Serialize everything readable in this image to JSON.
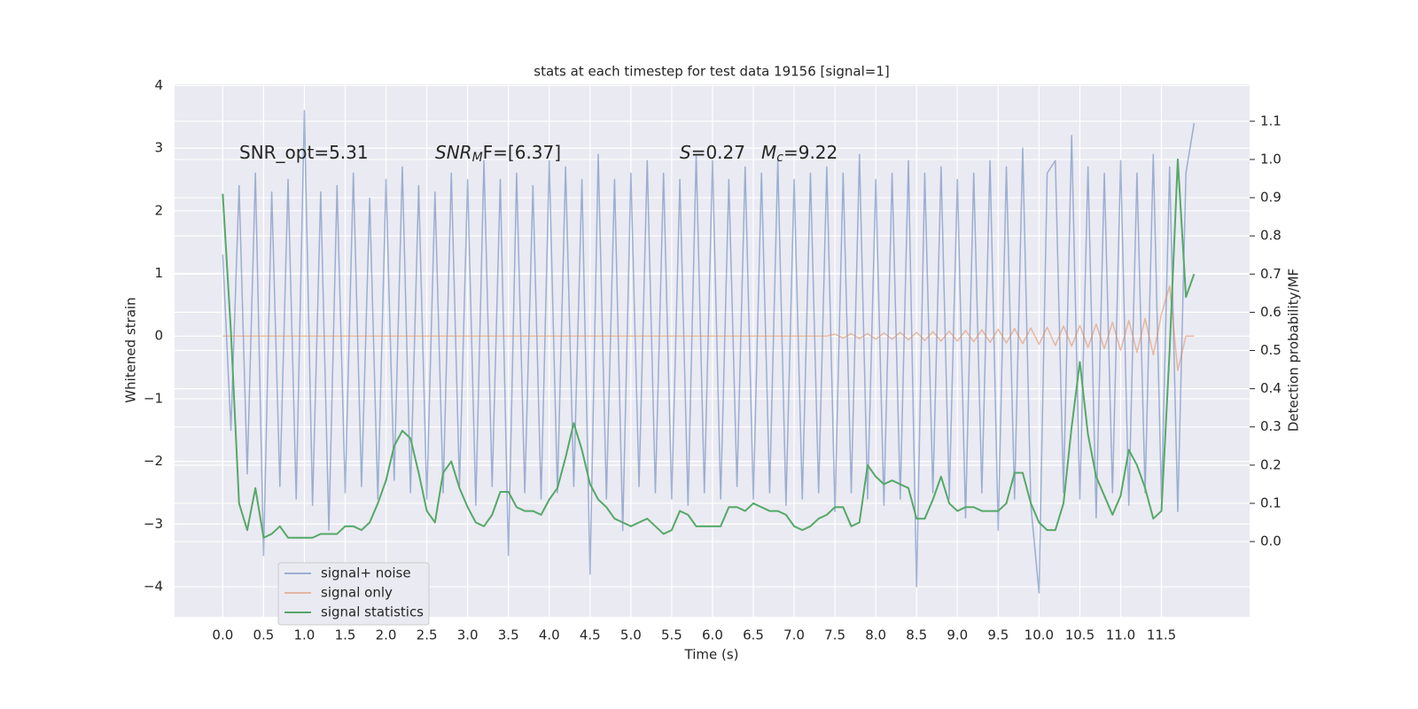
{
  "chart_data": {
    "type": "line",
    "title": "stats at each timestep for test data 19156 [signal=1]",
    "xlabel": "Time (s)",
    "ylabel": "Whitened strain",
    "y2label": "Detection probability/MF",
    "grid": true,
    "legend": "lower left",
    "xlim": [
      -0.59,
      12.58
    ],
    "ylim": [
      -4.48,
      4.02
    ],
    "y2lim": [
      -0.197,
      1.197
    ],
    "xticks": [
      {
        "value": 0,
        "label": "0.0"
      },
      0.5,
      {
        "value": 1,
        "label": "1.0"
      },
      1.5,
      {
        "value": 2,
        "label": "2.0"
      },
      2.5,
      {
        "value": 3,
        "label": "3.0"
      },
      3.5,
      {
        "value": 4,
        "label": "4.0"
      },
      4.5,
      {
        "value": 5,
        "label": "5.0"
      },
      5.5,
      {
        "value": 6,
        "label": "6.0"
      },
      6.5,
      {
        "value": 7,
        "label": "7.0"
      },
      7.5,
      {
        "value": 8,
        "label": "8.0"
      },
      8.5,
      {
        "value": 9,
        "label": "9.0"
      },
      9.5,
      {
        "value": 10,
        "label": "10.0"
      },
      10.5,
      {
        "value": 11,
        "label": "11.0"
      },
      11.5
    ],
    "yticks": [
      {
        "value": -4,
        "label": "−4"
      },
      {
        "value": -3,
        "label": "−3"
      },
      {
        "value": -2,
        "label": "−2"
      },
      {
        "value": -1,
        "label": "−1"
      },
      0,
      1,
      2,
      3,
      4
    ],
    "y2ticks": [
      {
        "value": 0,
        "label": "0.0"
      },
      0.1,
      0.2,
      0.3,
      0.4,
      0.5,
      0.6,
      0.7,
      0.8,
      0.9,
      {
        "value": 1,
        "label": "1.0"
      },
      1.1
    ],
    "annotations": [
      {
        "text": "SNR_opt=5.31"
      },
      {
        "text": "SNR",
        "sub": "M",
        "tail": "F=[6.37]"
      },
      {
        "text": "S",
        "tail": "=0.27"
      },
      {
        "text": "M",
        "sub": "c",
        "tail": "=9.22"
      }
    ],
    "x": [
      0.0,
      0.1,
      0.2,
      0.3,
      0.4,
      0.5,
      0.6,
      0.7,
      0.8,
      0.9,
      1.0,
      1.1,
      1.2,
      1.3,
      1.4,
      1.5,
      1.6,
      1.7,
      1.8,
      1.9,
      2.0,
      2.1,
      2.2,
      2.3,
      2.4,
      2.5,
      2.6,
      2.7,
      2.8,
      2.9,
      3.0,
      3.1,
      3.2,
      3.3,
      3.4,
      3.5,
      3.6,
      3.7,
      3.8,
      3.9,
      4.0,
      4.1,
      4.2,
      4.3,
      4.4,
      4.5,
      4.6,
      4.7,
      4.8,
      4.9,
      5.0,
      5.1,
      5.2,
      5.3,
      5.4,
      5.5,
      5.6,
      5.7,
      5.8,
      5.9,
      6.0,
      6.1,
      6.2,
      6.3,
      6.4,
      6.5,
      6.6,
      6.7,
      6.8,
      6.9,
      7.0,
      7.1,
      7.2,
      7.3,
      7.4,
      7.5,
      7.6,
      7.7,
      7.8,
      7.9,
      8.0,
      8.1,
      8.2,
      8.3,
      8.4,
      8.5,
      8.6,
      8.7,
      8.8,
      8.9,
      9.0,
      9.1,
      9.2,
      9.3,
      9.4,
      9.5,
      9.6,
      9.7,
      9.8,
      9.9,
      10.0,
      10.1,
      10.2,
      10.3,
      10.4,
      10.5,
      10.6,
      10.7,
      10.8,
      10.9,
      11.0,
      11.1,
      11.2,
      11.3,
      11.4,
      11.5,
      11.6,
      11.7,
      11.8,
      11.9
    ],
    "series": [
      {
        "name": "signal+ noise",
        "color": "#4c72b0",
        "opacity": 0.5,
        "values": [
          1.3,
          -1.5,
          2.4,
          -2.2,
          2.6,
          -3.5,
          2.3,
          -2.4,
          2.5,
          -2.6,
          3.6,
          -2.7,
          2.3,
          -3.1,
          2.4,
          -2.5,
          2.6,
          -2.4,
          2.2,
          -2.6,
          2.5,
          -2.3,
          2.7,
          -2.5,
          2.4,
          -2.6,
          2.3,
          -2.5,
          2.6,
          -2.4,
          2.5,
          -2.7,
          2.8,
          -2.4,
          2.5,
          -3.5,
          2.6,
          -2.5,
          2.4,
          -2.6,
          2.8,
          -2.5,
          2.7,
          -2.4,
          2.5,
          -3.8,
          2.9,
          -2.6,
          2.5,
          -3.1,
          2.6,
          -2.4,
          2.8,
          -2.5,
          2.6,
          -2.6,
          2.5,
          -2.7,
          2.9,
          -2.5,
          2.8,
          -2.6,
          2.5,
          -2.4,
          2.7,
          -2.6,
          2.6,
          -2.5,
          2.8,
          -2.7,
          2.5,
          -2.6,
          2.6,
          -2.5,
          2.7,
          -2.8,
          2.6,
          -2.5,
          2.9,
          -2.6,
          2.5,
          -2.7,
          2.6,
          -2.6,
          2.8,
          -4.0,
          2.6,
          -2.5,
          2.7,
          -2.6,
          2.5,
          -2.9,
          2.6,
          -2.5,
          2.8,
          -3.1,
          2.7,
          -2.6,
          3.0,
          -2.7,
          -4.1,
          2.6,
          2.8,
          -2.5,
          3.2,
          -2.6,
          2.7,
          -2.9,
          2.6,
          -2.5,
          2.8,
          -2.7,
          2.6,
          -2.5,
          2.9,
          -2.6,
          2.7,
          -2.8,
          2.6,
          3.4
        ]
      },
      {
        "name": "signal only",
        "color": "#dd8452",
        "opacity": 0.5,
        "values": [
          0,
          0,
          0,
          0,
          0,
          0,
          0,
          0,
          0,
          0,
          0,
          0,
          0,
          0,
          0,
          0,
          0,
          0,
          0,
          0,
          0,
          0,
          0,
          0,
          0,
          0,
          0,
          0,
          0,
          0,
          0,
          0,
          0,
          0,
          0,
          0,
          0,
          0,
          0,
          0,
          0,
          0,
          0,
          0,
          0,
          0,
          0,
          0,
          0,
          0,
          0,
          0,
          0,
          0,
          0,
          0,
          0,
          0,
          0,
          0,
          0,
          0,
          0,
          0,
          0,
          0,
          0,
          0,
          0,
          0,
          0,
          0,
          0,
          0,
          0,
          0.03,
          -0.03,
          0.04,
          -0.04,
          0.04,
          -0.05,
          0.05,
          -0.05,
          0.06,
          -0.06,
          0.06,
          -0.07,
          0.07,
          -0.08,
          0.08,
          -0.08,
          0.09,
          -0.09,
          0.1,
          -0.1,
          0.11,
          -0.11,
          0.12,
          -0.12,
          0.13,
          -0.13,
          0.14,
          -0.15,
          0.16,
          -0.16,
          0.17,
          -0.18,
          0.19,
          -0.2,
          0.22,
          -0.23,
          0.25,
          -0.26,
          0.28,
          -0.3,
          0.35,
          0.8,
          -0.55,
          0,
          0
        ]
      },
      {
        "name": "signal statistics",
        "color": "#55a868",
        "opacity": 1,
        "axis": "y2",
        "values": [
          0.91,
          0.55,
          0.1,
          0.03,
          0.14,
          0.01,
          0.02,
          0.04,
          0.01,
          0.01,
          0.01,
          0.01,
          0.02,
          0.02,
          0.02,
          0.04,
          0.04,
          0.03,
          0.05,
          0.1,
          0.16,
          0.25,
          0.29,
          0.27,
          0.18,
          0.08,
          0.05,
          0.18,
          0.21,
          0.14,
          0.09,
          0.05,
          0.04,
          0.07,
          0.13,
          0.13,
          0.09,
          0.08,
          0.08,
          0.07,
          0.11,
          0.14,
          0.22,
          0.31,
          0.24,
          0.15,
          0.11,
          0.09,
          0.06,
          0.05,
          0.04,
          0.05,
          0.06,
          0.04,
          0.02,
          0.03,
          0.08,
          0.07,
          0.04,
          0.04,
          0.04,
          0.04,
          0.09,
          0.09,
          0.08,
          0.1,
          0.09,
          0.08,
          0.08,
          0.07,
          0.04,
          0.03,
          0.04,
          0.06,
          0.07,
          0.09,
          0.09,
          0.04,
          0.05,
          0.2,
          0.17,
          0.15,
          0.16,
          0.15,
          0.14,
          0.06,
          0.06,
          0.11,
          0.17,
          0.1,
          0.08,
          0.09,
          0.09,
          0.08,
          0.08,
          0.08,
          0.1,
          0.18,
          0.18,
          0.1,
          0.05,
          0.03,
          0.03,
          0.1,
          0.3,
          0.47,
          0.28,
          0.17,
          0.12,
          0.07,
          0.12,
          0.24,
          0.2,
          0.14,
          0.06,
          0.08,
          0.5,
          1.0,
          0.64,
          0.7
        ]
      }
    ]
  }
}
